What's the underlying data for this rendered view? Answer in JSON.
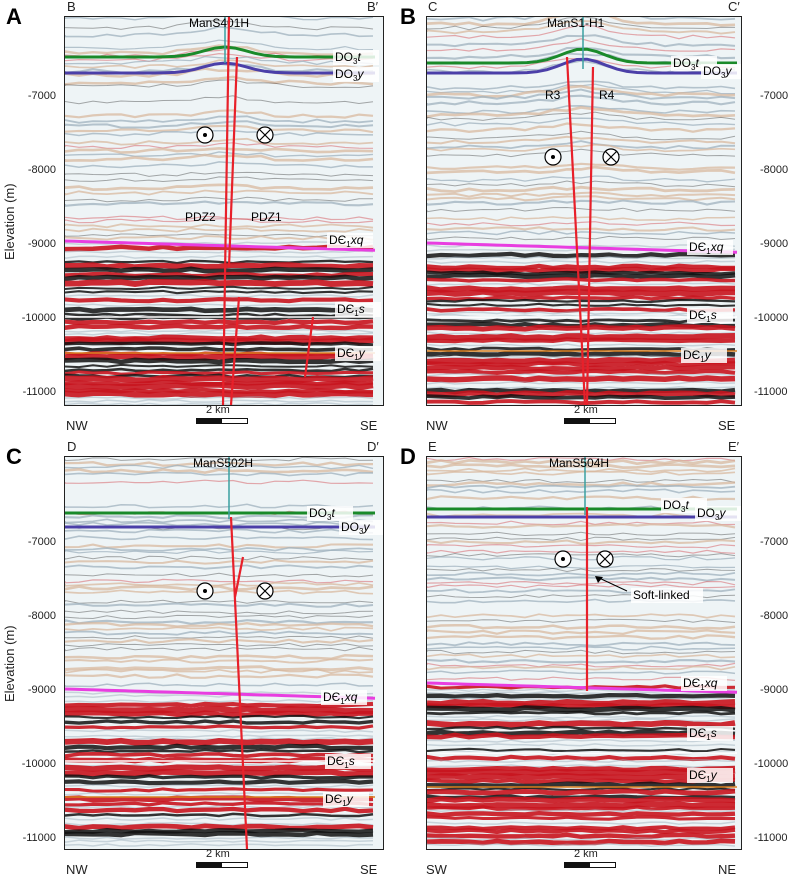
{
  "panels": [
    {
      "id": "A",
      "letter": "A",
      "corner_left": "B",
      "corner_right": "B′",
      "well": "ManS401H",
      "dir_left": "NW",
      "dir_right": "SE",
      "scale_label": "2 km",
      "tick_side": "left",
      "show_ylabel": true,
      "faults": [
        {
          "label": "PDZ2"
        },
        {
          "label": "PDZ1"
        }
      ],
      "horizons": [
        {
          "label_base": "DO",
          "label_sub": "3",
          "label_tail": "t",
          "color": "#1a8a2a"
        },
        {
          "label_base": "DO",
          "label_sub": "3",
          "label_tail": "y",
          "color": "#4b3fa8"
        },
        {
          "label_base": "DЄ",
          "label_sub": "1",
          "label_tail": "xq",
          "color": "#e83ee0"
        },
        {
          "label_base": "DЄ",
          "label_sub": "1",
          "label_tail": "s",
          "color": "#ffffff"
        },
        {
          "label_base": "DЄ",
          "label_sub": "1",
          "label_tail": "y",
          "color": "#d98020"
        }
      ]
    },
    {
      "id": "B",
      "letter": "B",
      "corner_left": "C",
      "corner_right": "C′",
      "well": "ManS1-H1",
      "dir_left": "NW",
      "dir_right": "SE",
      "scale_label": "2 km",
      "tick_side": "right",
      "show_ylabel": false,
      "faults": [
        {
          "label": "R3"
        },
        {
          "label": "R4"
        }
      ],
      "horizons": [
        {
          "label_base": "DO",
          "label_sub": "3",
          "label_tail": "t",
          "color": "#1a8a2a"
        },
        {
          "label_base": "DO",
          "label_sub": "3",
          "label_tail": "y",
          "color": "#4b3fa8"
        },
        {
          "label_base": "DЄ",
          "label_sub": "1",
          "label_tail": "xq",
          "color": "#e83ee0"
        },
        {
          "label_base": "DЄ",
          "label_sub": "1",
          "label_tail": "s",
          "color": "#ffffff"
        },
        {
          "label_base": "DЄ",
          "label_sub": "1",
          "label_tail": "y",
          "color": "#d98020"
        }
      ]
    },
    {
      "id": "C",
      "letter": "C",
      "corner_left": "D",
      "corner_right": "D′",
      "well": "ManS502H",
      "dir_left": "NW",
      "dir_right": "SE",
      "scale_label": "2 km",
      "tick_side": "left",
      "show_ylabel": true,
      "faults": [],
      "horizons": [
        {
          "label_base": "DO",
          "label_sub": "3",
          "label_tail": "t",
          "color": "#1a8a2a"
        },
        {
          "label_base": "DO",
          "label_sub": "3",
          "label_tail": "y",
          "color": "#4b3fa8"
        },
        {
          "label_base": "DЄ",
          "label_sub": "1",
          "label_tail": "xq",
          "color": "#e83ee0"
        },
        {
          "label_base": "DЄ",
          "label_sub": "1",
          "label_tail": "s",
          "color": "#ffffff"
        },
        {
          "label_base": "DЄ",
          "label_sub": "1",
          "label_tail": "y",
          "color": "#d98020"
        }
      ]
    },
    {
      "id": "D",
      "letter": "D",
      "corner_left": "E",
      "corner_right": "E′",
      "well": "ManS504H",
      "dir_left": "SW",
      "dir_right": "NE",
      "scale_label": "2 km",
      "tick_side": "right",
      "show_ylabel": false,
      "annotation": "Soft-linked",
      "faults": [],
      "horizons": [
        {
          "label_base": "DO",
          "label_sub": "3",
          "label_tail": "t",
          "color": "#1a8a2a"
        },
        {
          "label_base": "DO",
          "label_sub": "3",
          "label_tail": "y",
          "color": "#4b3fa8"
        },
        {
          "label_base": "DЄ",
          "label_sub": "1",
          "label_tail": "xq",
          "color": "#e83ee0"
        },
        {
          "label_base": "DЄ",
          "label_sub": "1",
          "label_tail": "s",
          "color": "#ffffff"
        },
        {
          "label_base": "DЄ",
          "label_sub": "1",
          "label_tail": "y",
          "color": "#d98020"
        }
      ]
    }
  ],
  "y_axis": {
    "label": "Elevation (m)",
    "ticks": [
      "-7000",
      "-8000",
      "-9000",
      "-10000",
      "-11000"
    ]
  },
  "colors": {
    "seis_bg": "#eef4f6",
    "trough_red": "#c8141e",
    "peak_black": "#101010",
    "grey_blue": "#9fb2bd",
    "tan": "#d7b59a",
    "fault_red": "#e8202a"
  }
}
